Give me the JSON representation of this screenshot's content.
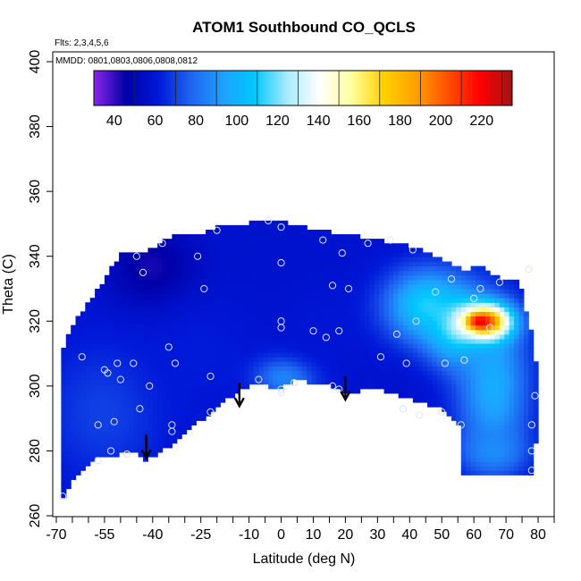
{
  "chart_data": {
    "type": "heatmap",
    "title": "ATOM1 Southbound CO_QCLS",
    "annotations": [
      "Flts: 2,3,4,5,6",
      "MMDD: 0801,0803,0806,0808,0812"
    ],
    "xlabel": "Latitude (deg N)",
    "ylabel": "Theta (C)",
    "xlim": [
      -70,
      85
    ],
    "ylim": [
      260,
      400
    ],
    "xticks": [
      -70,
      -55,
      -40,
      -25,
      -10,
      0,
      10,
      20,
      30,
      40,
      50,
      60,
      70,
      80
    ],
    "yticks": [
      260,
      280,
      300,
      320,
      340,
      360,
      380,
      400
    ],
    "colorbar": {
      "min": 30,
      "max": 235,
      "ticks": [
        40,
        60,
        80,
        100,
        120,
        140,
        160,
        180,
        200,
        220
      ],
      "colors": [
        "#8b26e8",
        "#0000a8",
        "#0018d8",
        "#1e64f0",
        "#1ea0ff",
        "#00c8ff",
        "#a8eaff",
        "#ffffff",
        "#ffffa0",
        "#ffd200",
        "#ffa000",
        "#ff5000",
        "#ff0000",
        "#a01414"
      ]
    },
    "field": {
      "boundary": [
        [
          -68,
          265
        ],
        [
          -67,
          268
        ],
        [
          -63,
          273
        ],
        [
          -58,
          278
        ],
        [
          -50,
          279
        ],
        [
          -45,
          279
        ],
        [
          -42,
          277
        ],
        [
          -38,
          279
        ],
        [
          -30,
          285
        ],
        [
          -22,
          292
        ],
        [
          -15,
          297
        ],
        [
          -8,
          301
        ],
        [
          0,
          299
        ],
        [
          2,
          301
        ],
        [
          5,
          302
        ],
        [
          15,
          300
        ],
        [
          20,
          298
        ],
        [
          30,
          299
        ],
        [
          40,
          296
        ],
        [
          50,
          293
        ],
        [
          56,
          288
        ],
        [
          56,
          272
        ],
        [
          79,
          272
        ],
        [
          79,
          280
        ],
        [
          80,
          292
        ],
        [
          79,
          312
        ],
        [
          77,
          320
        ],
        [
          74,
          333
        ],
        [
          68,
          333
        ],
        [
          63,
          337
        ],
        [
          57,
          336
        ],
        [
          48,
          340
        ],
        [
          42,
          343
        ],
        [
          30,
          345
        ],
        [
          20,
          347
        ],
        [
          10,
          348
        ],
        [
          5,
          350
        ],
        [
          -5,
          351
        ],
        [
          -20,
          349
        ],
        [
          -25,
          347
        ],
        [
          -35,
          346
        ],
        [
          -41,
          342
        ],
        [
          -50,
          341
        ],
        [
          -55,
          333
        ],
        [
          -58,
          329
        ],
        [
          -62,
          323
        ],
        [
          -65,
          318
        ],
        [
          -67,
          314
        ],
        [
          -68,
          311
        ]
      ],
      "regions": [
        {
          "center": [
            -40,
            336
          ],
          "radius": [
            16,
            16
          ],
          "value": 42
        },
        {
          "center": [
            -55,
            292
          ],
          "radius": [
            25,
            28
          ],
          "value": 70
        },
        {
          "center": [
            -25,
            310
          ],
          "radius": [
            22,
            22
          ],
          "value": 62
        },
        {
          "center": [
            2,
            303
          ],
          "radius": [
            12,
            8
          ],
          "value": 92
        },
        {
          "center": [
            15,
            318
          ],
          "radius": [
            20,
            20
          ],
          "value": 60
        },
        {
          "center": [
            45,
            325
          ],
          "radius": [
            16,
            14
          ],
          "value": 110
        },
        {
          "center": [
            55,
            318
          ],
          "radius": [
            12,
            14
          ],
          "value": 118
        },
        {
          "center": [
            66,
            300
          ],
          "radius": [
            14,
            30
          ],
          "value": 98
        },
        {
          "center": [
            66,
            280
          ],
          "radius": [
            12,
            8
          ],
          "value": 88
        },
        {
          "center": [
            64,
            320
          ],
          "radius": [
            10,
            7
          ],
          "value": 190
        },
        {
          "center": [
            62,
            320
          ],
          "radius": [
            5,
            3
          ],
          "value": 222
        }
      ],
      "background_value": 58
    },
    "samples": [
      [
        -68,
        266
      ],
      [
        -62,
        309
      ],
      [
        -57,
        277
      ],
      [
        -57,
        288
      ],
      [
        -55,
        305
      ],
      [
        -54,
        304
      ],
      [
        -53,
        280
      ],
      [
        -52,
        289
      ],
      [
        -51,
        307
      ],
      [
        -50,
        302
      ],
      [
        -48,
        279
      ],
      [
        -46,
        307
      ],
      [
        -45,
        340
      ],
      [
        -44,
        293
      ],
      [
        -43,
        335
      ],
      [
        -41,
        300
      ],
      [
        -37,
        344
      ],
      [
        -35,
        312
      ],
      [
        -34,
        286
      ],
      [
        -34,
        288
      ],
      [
        -33,
        307
      ],
      [
        -26,
        340
      ],
      [
        -24,
        330
      ],
      [
        -22,
        303
      ],
      [
        -22,
        292
      ],
      [
        -20,
        348
      ],
      [
        -7,
        302
      ],
      [
        -4,
        351
      ],
      [
        0,
        298
      ],
      [
        0,
        299
      ],
      [
        0,
        318
      ],
      [
        0,
        320
      ],
      [
        0,
        338
      ],
      [
        0,
        349
      ],
      [
        4,
        301
      ],
      [
        10,
        317
      ],
      [
        13,
        345
      ],
      [
        14,
        315
      ],
      [
        16,
        300
      ],
      [
        16,
        331
      ],
      [
        18,
        299
      ],
      [
        18,
        317
      ],
      [
        19,
        341
      ],
      [
        21,
        330
      ],
      [
        27,
        344
      ],
      [
        31,
        309
      ],
      [
        34,
        345
      ],
      [
        36,
        316
      ],
      [
        38,
        293
      ],
      [
        39,
        307
      ],
      [
        41,
        342
      ],
      [
        42,
        320
      ],
      [
        43,
        291
      ],
      [
        48,
        329
      ],
      [
        50,
        292
      ],
      [
        51,
        307
      ],
      [
        53,
        333
      ],
      [
        55,
        322
      ],
      [
        56,
        288
      ],
      [
        57,
        308
      ],
      [
        60,
        327
      ],
      [
        62,
        330
      ],
      [
        65,
        318
      ],
      [
        68,
        332
      ],
      [
        77,
        336
      ],
      [
        78,
        274
      ],
      [
        78,
        280
      ],
      [
        78,
        288
      ],
      [
        79,
        297
      ]
    ],
    "arrows": [
      [
        -42,
        285
      ],
      [
        -13,
        301
      ],
      [
        20,
        303
      ]
    ]
  }
}
